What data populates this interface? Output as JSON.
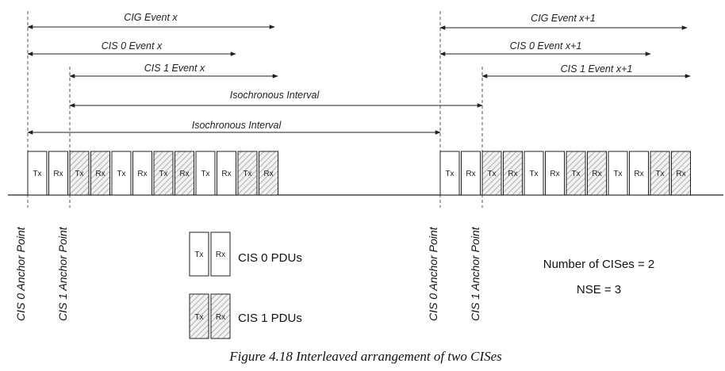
{
  "event_labels": {
    "cig_x": "CIG Event x",
    "cis0_x": "CIS 0 Event x",
    "cis1_x": "CIS 1 Event x",
    "iso_1": "Isochronous Interval",
    "iso_2": "Isochronous Interval",
    "cig_x1": "CIG Event x+1",
    "cis0_x1": "CIS 0 Event x+1",
    "cis1_x1": "CIS 1 Event x+1"
  },
  "pdu_labels": {
    "tx": "Tx",
    "rx": "Rx"
  },
  "anchors": {
    "cis0_a": "CIS 0 Anchor Point",
    "cis1_a": "CIS 1 Anchor Point",
    "cis0_b": "CIS 0 Anchor Point",
    "cis1_b": "CIS 1 Anchor Point"
  },
  "legend": {
    "cis0_pdus": "CIS 0 PDUs",
    "cis1_pdus": "CIS 1 PDUs",
    "num_cises": "Number of CISes = 2",
    "nse": "NSE = 3"
  },
  "caption": "Figure 4.18  Interleaved arrangement of two CISes",
  "colors": {
    "line": "#222222",
    "hatch": "#bdbdbd",
    "guide": "#555555"
  }
}
